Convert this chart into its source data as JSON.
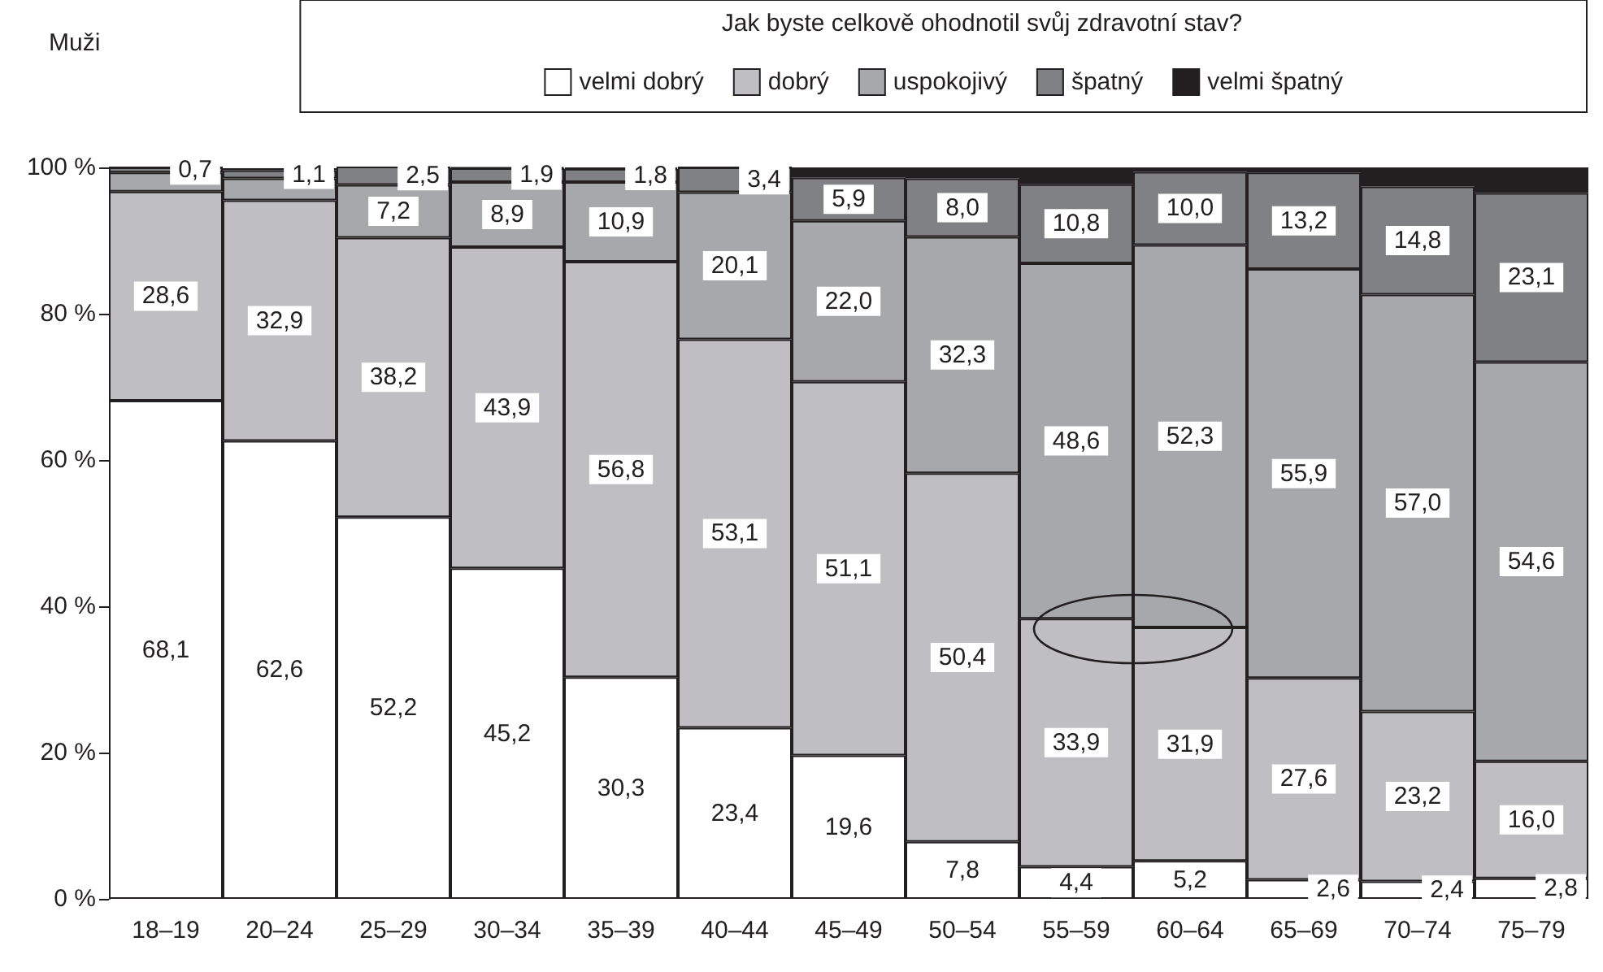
{
  "chart_data": {
    "type": "bar",
    "stacked": true,
    "legend_title": "Jak byste celkově ohodnotil svůj zdravotní stav?",
    "annotations": [
      "Muži"
    ],
    "categories": [
      "18–19",
      "20–24",
      "25–29",
      "30–34",
      "35–39",
      "40–44",
      "45–49",
      "50–54",
      "55–59",
      "60–64",
      "65–69",
      "70–74",
      "75–79"
    ],
    "ylim": [
      0,
      100
    ],
    "yticks": [
      {
        "value": 0,
        "label": "0 %"
      },
      {
        "value": 20,
        "label": "20 %"
      },
      {
        "value": 40,
        "label": "40 %"
      },
      {
        "value": 60,
        "label": "60 %"
      },
      {
        "value": 80,
        "label": "80 %"
      },
      {
        "value": 100,
        "label": "100 %"
      }
    ],
    "grid": false,
    "legend": "top",
    "series": [
      {
        "name": "velmi dobrý",
        "color": "#ffffff",
        "values": [
          68.1,
          62.6,
          52.2,
          45.2,
          30.3,
          23.4,
          19.6,
          7.8,
          4.4,
          5.2,
          2.6,
          2.4,
          2.8
        ],
        "value_labels": [
          "68,1",
          "62,6",
          "52,2",
          "45,2",
          "30,3",
          "23,4",
          "19,6",
          "7,8",
          "4,4",
          "5,2",
          "2,6",
          "2,4",
          "2,8"
        ]
      },
      {
        "name": "dobrý",
        "color": "#bfbfc3",
        "values": [
          28.6,
          32.9,
          38.2,
          43.9,
          56.8,
          53.1,
          51.1,
          50.4,
          33.9,
          31.9,
          27.6,
          23.2,
          16.0
        ],
        "value_labels": [
          "28,6",
          "32,9",
          "38,2",
          "43,9",
          "56,8",
          "53,1",
          "51,1",
          "50,4",
          "33,9",
          "31,9",
          "27,6",
          "23,2",
          "16,0"
        ]
      },
      {
        "name": "uspokojivý",
        "color": "#a7a8ac",
        "values": [
          2.6,
          3.0,
          7.2,
          8.9,
          10.9,
          20.1,
          22.0,
          32.3,
          48.6,
          52.3,
          55.9,
          57.0,
          54.6
        ],
        "value_labels": [
          null,
          null,
          "7,2",
          "8,9",
          "10,9",
          "20,1",
          "22,0",
          "32,3",
          "48,6",
          "52,3",
          "55,9",
          "57,0",
          "54,6"
        ]
      },
      {
        "name": "špatný",
        "color": "#808184",
        "values": [
          0.7,
          1.1,
          2.5,
          1.9,
          1.8,
          3.4,
          5.9,
          8.0,
          10.8,
          10.0,
          13.2,
          14.8,
          23.1
        ],
        "value_labels": [
          "0,7",
          "1,1",
          "2,5",
          "1,9",
          "1,8",
          "3,4",
          "5,9",
          "8,0",
          "10,8",
          "10,0",
          "13,2",
          "14,8",
          "23,1"
        ]
      },
      {
        "name": "velmi špatný",
        "color": "#231f20",
        "values": [
          0,
          0.3,
          0,
          0.1,
          0.2,
          0,
          1.4,
          1.5,
          2.3,
          0.6,
          0.7,
          2.6,
          3.5
        ],
        "value_labels": [
          null,
          null,
          null,
          null,
          null,
          null,
          null,
          null,
          null,
          null,
          null,
          null,
          null
        ]
      }
    ]
  }
}
